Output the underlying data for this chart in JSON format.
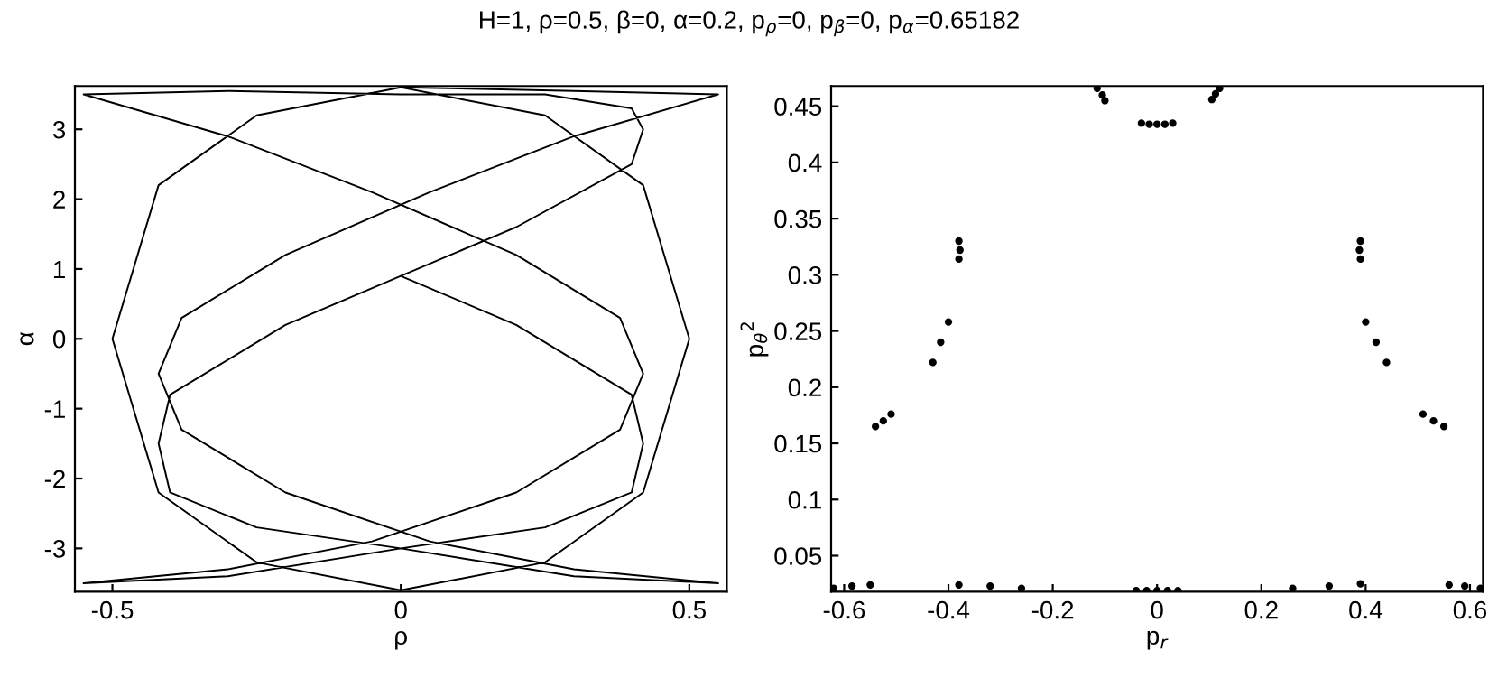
{
  "chart_data": [
    {
      "type": "line",
      "title": "H=1, ρ=0.5, β=0, α=0.2, p$_{ρ}$=0, p$_{β}$=0, p$_{α}$=0.65182",
      "xlabel": "ρ",
      "ylabel": "α",
      "xlim": [
        -0.565,
        0.565
      ],
      "ylim": [
        -3.62,
        3.62
      ],
      "xticks": [
        -0.5,
        0,
        0.5
      ],
      "yticks": [
        -3,
        -2,
        -1,
        0,
        1,
        2,
        3
      ],
      "grid": false,
      "marker": "none",
      "line_style": "solid",
      "series": [
        {
          "color": "#000000",
          "x": [
            0,
            0.25,
            0.42,
            0.5,
            0.42,
            0.25,
            0,
            -0.25,
            -0.42,
            -0.5,
            -0.42,
            -0.25,
            0,
            0.3,
            0.55,
            0.3,
            0.05,
            -0.2,
            -0.38,
            -0.42,
            -0.38,
            -0.2,
            0.05,
            0.3,
            0.55,
            0.3,
            0,
            -0.25,
            -0.4,
            -0.42,
            -0.4,
            -0.2,
            0,
            0.2,
            0.4,
            0.42,
            0.4,
            0.25,
            0,
            -0.3,
            -0.55,
            -0.3,
            -0.05,
            0.2,
            0.38,
            0.42,
            0.38,
            0.2,
            -0.05,
            -0.3,
            -0.55,
            -0.3,
            0,
            0.25,
            0.4,
            0.42,
            0.4,
            0.2,
            0
          ],
          "values": [
            3.6,
            3.2,
            2.2,
            0,
            -2.2,
            -3.2,
            -3.6,
            -3.2,
            -2.2,
            0,
            2.2,
            3.2,
            3.6,
            3.55,
            3.5,
            2.9,
            2.1,
            1.2,
            0.3,
            -0.5,
            -1.3,
            -2.2,
            -2.9,
            -3.3,
            -3.5,
            -3.4,
            -3.0,
            -2.7,
            -2.2,
            -1.5,
            -0.8,
            0.2,
            0.9,
            1.6,
            2.5,
            3.0,
            3.3,
            3.5,
            3.5,
            3.55,
            3.5,
            2.9,
            2.1,
            1.2,
            0.3,
            -0.5,
            -1.3,
            -2.2,
            -2.9,
            -3.3,
            -3.5,
            -3.4,
            -3.0,
            -2.7,
            -2.2,
            -1.5,
            -0.8,
            0.2,
            0.9
          ]
        }
      ]
    },
    {
      "type": "scatter",
      "xlabel": "p$_{r}$",
      "ylabel": "p$_{θ}$$^{2}$",
      "xlim": [
        -0.625,
        0.625
      ],
      "ylim": [
        0.018,
        0.468
      ],
      "xticks": [
        -0.6,
        -0.4,
        -0.2,
        0,
        0.2,
        0.4,
        0.6
      ],
      "yticks": [
        0.05,
        0.1,
        0.15,
        0.2,
        0.25,
        0.3,
        0.35,
        0.4,
        0.45
      ],
      "grid": false,
      "marker": "circle",
      "series": [
        {
          "color": "#000000",
          "x": [
            -0.115,
            -0.105,
            -0.1,
            0.105,
            0.112,
            0.12,
            -0.03,
            -0.015,
            0,
            0.015,
            0.03,
            -0.38,
            -0.378,
            -0.38,
            0.39,
            0.388,
            0.39,
            -0.43,
            -0.415,
            -0.4,
            0.4,
            0.42,
            0.44,
            -0.54,
            -0.525,
            -0.51,
            0.51,
            0.53,
            0.55,
            -0.62,
            -0.585,
            -0.55,
            -0.38,
            -0.32,
            -0.26,
            -0.04,
            -0.02,
            0,
            0.02,
            0.04,
            0.26,
            0.33,
            0.39,
            0.56,
            0.59,
            0.62
          ],
          "values": [
            0.466,
            0.46,
            0.455,
            0.456,
            0.461,
            0.466,
            0.435,
            0.434,
            0.434,
            0.434,
            0.435,
            0.33,
            0.322,
            0.314,
            0.33,
            0.322,
            0.314,
            0.222,
            0.24,
            0.258,
            0.258,
            0.24,
            0.222,
            0.165,
            0.17,
            0.176,
            0.176,
            0.17,
            0.165,
            0.021,
            0.023,
            0.024,
            0.024,
            0.023,
            0.021,
            0.019,
            0.019,
            0.019,
            0.019,
            0.019,
            0.021,
            0.023,
            0.025,
            0.024,
            0.023,
            0.021
          ]
        }
      ]
    }
  ]
}
